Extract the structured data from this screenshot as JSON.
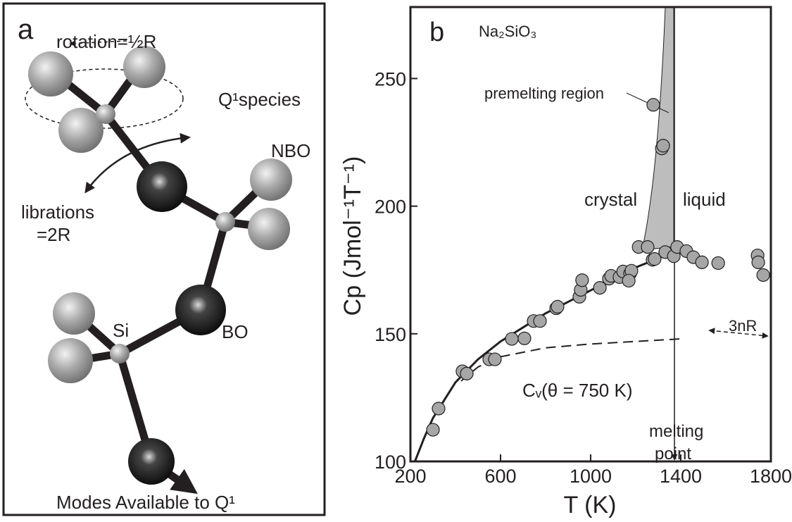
{
  "panel_a": {
    "label": "a",
    "rotation": "rotation=½R",
    "species": "Q¹species",
    "nbo": "NBO",
    "librations": "librations",
    "librations_value": "=2R",
    "si": "Si",
    "bo": "BO",
    "caption": "Modes Available to Q¹"
  },
  "chart_data": {
    "type": "scatter",
    "label": "b",
    "compound": "Na₂SiO₃",
    "xlabel": "T (K)",
    "ylabel": "Cp (Jmol⁻¹T⁻¹)",
    "annotations": {
      "premelting": "premelting region",
      "crystal": "crystal",
      "liquid": "liquid",
      "three_nr": "3nR",
      "cv": "Cᵥ(θ = 750 K)",
      "melting1": "melting",
      "melting2": "point"
    },
    "xlim": [
      200,
      1800
    ],
    "ylim": [
      100,
      278
    ],
    "xticks": [
      200,
      600,
      1000,
      1400,
      1800
    ],
    "yticks": [
      100,
      150,
      200,
      250
    ],
    "series": [
      {
        "type": "scatter",
        "color": "#a6a6a6",
        "x": [
          300,
          325,
          431,
          450,
          550,
          575,
          650,
          706,
          747,
          775,
          847,
          853,
          950,
          956,
          962,
          1041,
          1081,
          1091,
          1128,
          1144,
          1175,
          1181,
          1169,
          1213,
          1253,
          1275,
          1284,
          1331,
          1369,
          1278,
          1316,
          1322,
          1384,
          1425,
          1456,
          1494,
          1566,
          1741,
          1744,
          1766
        ],
        "values": [
          112.4,
          120.7,
          135.3,
          134.4,
          140,
          140,
          148,
          148.2,
          155,
          155,
          160,
          160.6,
          164.5,
          167.2,
          171,
          168,
          171.6,
          172.7,
          172.2,
          174.4,
          173.6,
          174.7,
          170.8,
          184,
          184,
          179,
          179.3,
          182,
          180.4,
          239.7,
          222.6,
          223.7,
          184,
          182.4,
          180,
          178,
          177.7,
          180.7,
          178,
          173
        ]
      },
      {
        "type": "line",
        "color": "#231f20",
        "dash": false,
        "x": [
          220,
          260,
          300,
          400,
          500,
          600,
          800,
          1000,
          1200,
          1370
        ],
        "values": [
          100,
          109,
          117,
          131,
          140,
          147,
          158,
          167,
          176,
          182
        ]
      },
      {
        "type": "line",
        "color": "#231f20",
        "dash": true,
        "x": [
          425,
          500,
          600,
          800,
          1000,
          1200,
          1400
        ],
        "values": [
          131.5,
          137,
          141,
          144.5,
          146,
          147,
          148
        ]
      }
    ]
  }
}
